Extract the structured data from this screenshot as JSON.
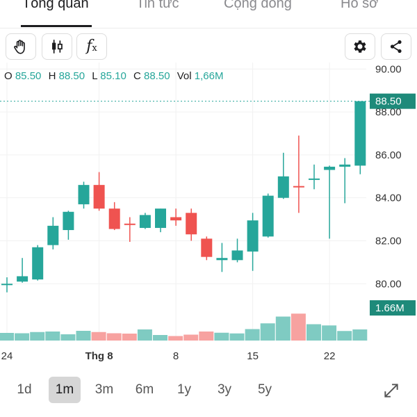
{
  "tabs": [
    {
      "label": "Tổng quan",
      "active": true
    },
    {
      "label": "Tin tức",
      "active": false
    },
    {
      "label": "Cộng đồng",
      "active": false
    },
    {
      "label": "Hồ sơ",
      "active": false
    }
  ],
  "toolbar": {
    "left_icons": [
      "hand-draw-icon",
      "candlestick-icon",
      "function-fx-icon"
    ],
    "fx_label": "f",
    "fx_sub": "x",
    "right_icons": [
      "gear-icon",
      "share-icon"
    ]
  },
  "ohlc": {
    "o_label": "O",
    "o_value": "85.50",
    "h_label": "H",
    "h_value": "88.50",
    "l_label": "L",
    "l_value": "85.10",
    "c_label": "C",
    "c_value": "88.50",
    "vol_label": "Vol",
    "vol_value": "1,66M"
  },
  "colors": {
    "up": "#26a69a",
    "down": "#ef5350",
    "vol_up": "#7fcbc2",
    "vol_down": "#f7a2a0",
    "badge": "#1e8a7a"
  },
  "chart_data": {
    "type": "candlestick",
    "price_ticks": [
      "90.00",
      "88.00",
      "86.00",
      "84.00",
      "82.00",
      "80.00"
    ],
    "price_ylim": [
      78.65,
      90.3
    ],
    "last_price_label": "88.50",
    "last_price": 88.5,
    "volume_label": "1.66M",
    "x_ticks": [
      {
        "label": "24",
        "index": 0
      },
      {
        "label": "Thg 8",
        "index": 6
      },
      {
        "label": "8",
        "index": 11
      },
      {
        "label": "15",
        "index": 16
      },
      {
        "label": "22",
        "index": 21
      }
    ],
    "candles": [
      {
        "o": 79.95,
        "h": 80.3,
        "l": 79.6,
        "c": 80.0
      },
      {
        "o": 80.1,
        "h": 81.2,
        "l": 80.05,
        "c": 80.35
      },
      {
        "o": 80.2,
        "h": 81.8,
        "l": 80.15,
        "c": 81.7
      },
      {
        "o": 81.8,
        "h": 83.1,
        "l": 81.6,
        "c": 82.7
      },
      {
        "o": 82.5,
        "h": 83.4,
        "l": 82.05,
        "c": 83.35
      },
      {
        "o": 83.7,
        "h": 84.75,
        "l": 83.5,
        "c": 84.6
      },
      {
        "o": 84.6,
        "h": 85.2,
        "l": 83.4,
        "c": 83.5
      },
      {
        "o": 83.5,
        "h": 83.8,
        "l": 82.5,
        "c": 82.55
      },
      {
        "o": 82.8,
        "h": 83.1,
        "l": 81.95,
        "c": 82.75
      },
      {
        "o": 82.6,
        "h": 83.3,
        "l": 82.55,
        "c": 83.2
      },
      {
        "o": 82.6,
        "h": 83.5,
        "l": 82.4,
        "c": 83.5
      },
      {
        "o": 83.1,
        "h": 83.5,
        "l": 82.7,
        "c": 82.95
      },
      {
        "o": 83.3,
        "h": 83.5,
        "l": 82.0,
        "c": 82.3
      },
      {
        "o": 82.1,
        "h": 82.2,
        "l": 81.1,
        "c": 81.25
      },
      {
        "o": 81.1,
        "h": 81.9,
        "l": 80.55,
        "c": 81.2
      },
      {
        "o": 81.1,
        "h": 82.1,
        "l": 81.0,
        "c": 81.55
      },
      {
        "o": 81.5,
        "h": 83.3,
        "l": 80.6,
        "c": 82.95
      },
      {
        "o": 82.2,
        "h": 84.2,
        "l": 82.15,
        "c": 84.1
      },
      {
        "o": 84.0,
        "h": 86.1,
        "l": 83.95,
        "c": 85.0
      },
      {
        "o": 84.55,
        "h": 86.9,
        "l": 83.3,
        "c": 84.5
      },
      {
        "o": 84.85,
        "h": 85.55,
        "l": 84.4,
        "c": 84.9
      },
      {
        "o": 85.3,
        "h": 85.5,
        "l": 82.1,
        "c": 85.45
      },
      {
        "o": 85.45,
        "h": 85.85,
        "l": 83.75,
        "c": 85.55
      },
      {
        "o": 85.5,
        "h": 88.5,
        "l": 85.1,
        "c": 88.5
      }
    ],
    "volume_ratio": [
      0.44,
      0.42,
      0.49,
      0.52,
      0.36,
      0.56,
      0.49,
      0.42,
      0.4,
      0.64,
      0.32,
      0.26,
      0.34,
      0.52,
      0.45,
      0.41,
      0.66,
      0.99,
      1.38,
      1.55,
      0.94,
      0.87,
      0.55,
      0.64
    ]
  },
  "ranges": [
    {
      "label": "1d",
      "active": false
    },
    {
      "label": "1m",
      "active": true
    },
    {
      "label": "3m",
      "active": false
    },
    {
      "label": "6m",
      "active": false
    },
    {
      "label": "1y",
      "active": false
    },
    {
      "label": "3y",
      "active": false
    },
    {
      "label": "5y",
      "active": false
    }
  ],
  "expand_icon": "expand-arrows-icon"
}
